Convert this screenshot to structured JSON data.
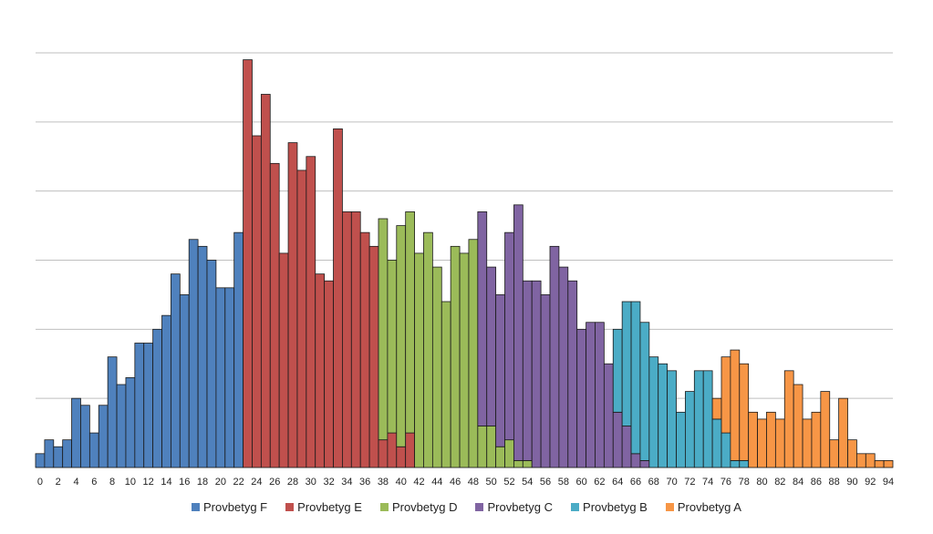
{
  "chart_data": {
    "type": "bar",
    "stacked": true,
    "grid": true,
    "legend_position": "bottom",
    "ylim": [
      0,
      60
    ],
    "x": [
      0,
      1,
      2,
      3,
      4,
      5,
      6,
      7,
      8,
      9,
      10,
      11,
      12,
      13,
      14,
      15,
      16,
      17,
      18,
      19,
      20,
      21,
      22,
      23,
      24,
      25,
      26,
      27,
      28,
      29,
      30,
      31,
      32,
      33,
      34,
      35,
      36,
      37,
      38,
      39,
      40,
      41,
      42,
      43,
      44,
      45,
      46,
      47,
      48,
      49,
      50,
      51,
      52,
      53,
      54,
      55,
      56,
      57,
      58,
      59,
      60,
      61,
      62,
      63,
      64,
      65,
      66,
      67,
      68,
      69,
      70,
      71,
      72,
      73,
      74,
      75,
      76,
      77,
      78,
      79,
      80,
      81,
      82,
      83,
      84,
      85,
      86,
      87,
      88,
      89,
      90,
      91,
      92,
      93,
      94
    ],
    "x_tick_labels": [
      "0",
      "2",
      "4",
      "6",
      "8",
      "10",
      "12",
      "14",
      "16",
      "18",
      "20",
      "22",
      "24",
      "26",
      "28",
      "30",
      "32",
      "34",
      "36",
      "38",
      "40",
      "42",
      "44",
      "46",
      "48",
      "50",
      "52",
      "54",
      "56",
      "58",
      "60",
      "62",
      "64",
      "66",
      "68",
      "70",
      "72",
      "74",
      "76",
      "78",
      "80",
      "82",
      "84",
      "86",
      "88",
      "90",
      "92",
      "94"
    ],
    "series": [
      {
        "name": "Provbetyg F",
        "color": "#4f81bd",
        "values": [
          2,
          4,
          3,
          4,
          10,
          9,
          5,
          9,
          16,
          12,
          13,
          18,
          18,
          20,
          22,
          28,
          25,
          33,
          32,
          30,
          26,
          26,
          34,
          0,
          0,
          0,
          0,
          0,
          0,
          0,
          0,
          0,
          0,
          0,
          0,
          0,
          0,
          0,
          0,
          0,
          0,
          0,
          0,
          0,
          0,
          0,
          0,
          0,
          0,
          0,
          0,
          0,
          0,
          0,
          0,
          0,
          0,
          0,
          0,
          0,
          0,
          0,
          0,
          0,
          0,
          0,
          0,
          0,
          0,
          0,
          0,
          0,
          0,
          0,
          0,
          0,
          0,
          0,
          0,
          0,
          0,
          0,
          0,
          0,
          0,
          0,
          0,
          0,
          0,
          0,
          0,
          0,
          0,
          0,
          0
        ]
      },
      {
        "name": "Provbetyg E",
        "color": "#c0504d",
        "values": [
          0,
          0,
          0,
          0,
          0,
          0,
          0,
          0,
          0,
          0,
          0,
          0,
          0,
          0,
          0,
          0,
          0,
          0,
          0,
          0,
          0,
          0,
          0,
          59,
          48,
          54,
          44,
          31,
          47,
          43,
          45,
          28,
          27,
          49,
          37,
          37,
          34,
          32,
          4,
          5,
          3,
          5,
          0,
          0,
          0,
          0,
          0,
          0,
          0,
          0,
          0,
          0,
          0,
          0,
          0,
          0,
          0,
          0,
          0,
          0,
          0,
          0,
          0,
          0,
          0,
          0,
          0,
          0,
          0,
          0,
          0,
          0,
          0,
          0,
          0,
          0,
          0,
          0,
          0,
          0,
          0,
          0,
          0,
          0,
          0,
          0,
          0,
          0,
          0,
          0,
          0,
          0,
          0,
          0,
          0
        ]
      },
      {
        "name": "Provbetyg D",
        "color": "#9bbb59",
        "values": [
          0,
          0,
          0,
          0,
          0,
          0,
          0,
          0,
          0,
          0,
          0,
          0,
          0,
          0,
          0,
          0,
          0,
          0,
          0,
          0,
          0,
          0,
          0,
          0,
          0,
          0,
          0,
          0,
          0,
          0,
          0,
          0,
          0,
          0,
          0,
          0,
          0,
          0,
          32,
          25,
          32,
          32,
          31,
          34,
          29,
          24,
          32,
          31,
          33,
          6,
          6,
          3,
          4,
          1,
          1,
          0,
          0,
          0,
          0,
          0,
          0,
          0,
          0,
          0,
          0,
          0,
          0,
          0,
          0,
          0,
          0,
          0,
          0,
          0,
          0,
          0,
          0,
          0,
          0,
          0,
          0,
          0,
          0,
          0,
          0,
          0,
          0,
          0,
          0,
          0,
          0,
          0,
          0,
          0,
          0
        ]
      },
      {
        "name": "Provbetyg C",
        "color": "#8064a2",
        "values": [
          0,
          0,
          0,
          0,
          0,
          0,
          0,
          0,
          0,
          0,
          0,
          0,
          0,
          0,
          0,
          0,
          0,
          0,
          0,
          0,
          0,
          0,
          0,
          0,
          0,
          0,
          0,
          0,
          0,
          0,
          0,
          0,
          0,
          0,
          0,
          0,
          0,
          0,
          0,
          0,
          0,
          0,
          0,
          0,
          0,
          0,
          0,
          0,
          0,
          31,
          23,
          22,
          30,
          37,
          26,
          27,
          25,
          32,
          29,
          27,
          20,
          21,
          21,
          15,
          8,
          6,
          2,
          1,
          0,
          0,
          0,
          0,
          0,
          0,
          0,
          0,
          0,
          0,
          0,
          0,
          0,
          0,
          0,
          0,
          0,
          0,
          0,
          0,
          0,
          0,
          0,
          0,
          0,
          0,
          0
        ]
      },
      {
        "name": "Provbetyg B",
        "color": "#4bacc6",
        "values": [
          0,
          0,
          0,
          0,
          0,
          0,
          0,
          0,
          0,
          0,
          0,
          0,
          0,
          0,
          0,
          0,
          0,
          0,
          0,
          0,
          0,
          0,
          0,
          0,
          0,
          0,
          0,
          0,
          0,
          0,
          0,
          0,
          0,
          0,
          0,
          0,
          0,
          0,
          0,
          0,
          0,
          0,
          0,
          0,
          0,
          0,
          0,
          0,
          0,
          0,
          0,
          0,
          0,
          0,
          0,
          0,
          0,
          0,
          0,
          0,
          0,
          0,
          0,
          0,
          12,
          18,
          22,
          20,
          16,
          15,
          14,
          8,
          11,
          14,
          14,
          7,
          5,
          1,
          1,
          0,
          0,
          0,
          0,
          0,
          0,
          0,
          0,
          0,
          0,
          0,
          0,
          0,
          0,
          0,
          0
        ]
      },
      {
        "name": "Provbetyg A",
        "color": "#f79646",
        "values": [
          0,
          0,
          0,
          0,
          0,
          0,
          0,
          0,
          0,
          0,
          0,
          0,
          0,
          0,
          0,
          0,
          0,
          0,
          0,
          0,
          0,
          0,
          0,
          0,
          0,
          0,
          0,
          0,
          0,
          0,
          0,
          0,
          0,
          0,
          0,
          0,
          0,
          0,
          0,
          0,
          0,
          0,
          0,
          0,
          0,
          0,
          0,
          0,
          0,
          0,
          0,
          0,
          0,
          0,
          0,
          0,
          0,
          0,
          0,
          0,
          0,
          0,
          0,
          0,
          0,
          0,
          0,
          0,
          0,
          0,
          0,
          0,
          0,
          0,
          0,
          3,
          11,
          16,
          14,
          8,
          7,
          8,
          7,
          14,
          12,
          7,
          8,
          11,
          4,
          10,
          4,
          2,
          2,
          1,
          1
        ]
      }
    ]
  }
}
